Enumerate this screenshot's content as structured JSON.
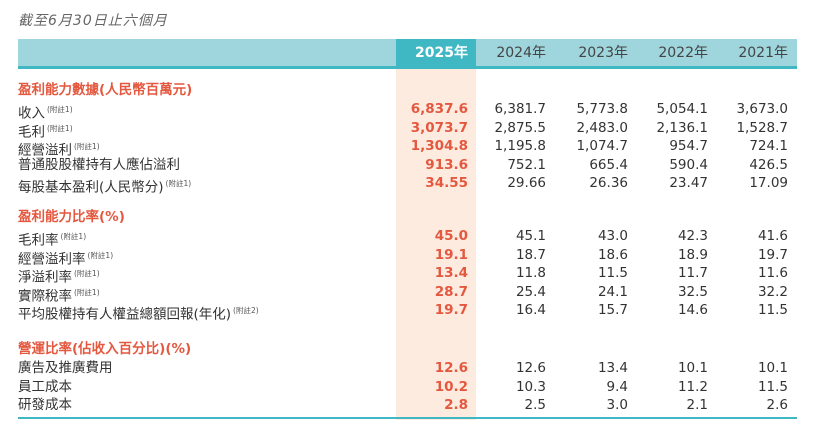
{
  "caption": "截至6月30日止六個月",
  "years": [
    "2025年",
    "2024年",
    "2023年",
    "2022年",
    "2021年"
  ],
  "sections": [
    {
      "title": "盈利能力數據(人民幣百萬元)",
      "rows": [
        {
          "label": "收入",
          "note": "(附註1)",
          "values": [
            "6,837.6",
            "6,381.7",
            "5,773.8",
            "5,054.1",
            "3,673.0"
          ]
        },
        {
          "label": "毛利",
          "note": "(附註1)",
          "values": [
            "3,073.7",
            "2,875.5",
            "2,483.0",
            "2,136.1",
            "1,528.7"
          ]
        },
        {
          "label": "經營溢利",
          "note": "(附註1)",
          "values": [
            "1,304.8",
            "1,195.8",
            "1,074.7",
            "954.7",
            "724.1"
          ]
        },
        {
          "label": "普通股股權持有人應佔溢利",
          "note": "",
          "values": [
            "913.6",
            "752.1",
            "665.4",
            "590.4",
            "426.5"
          ]
        },
        {
          "label": "每股基本盈利(人民幣分)",
          "note": "(附註1)",
          "values": [
            "34.55",
            "29.66",
            "26.36",
            "23.47",
            "17.09"
          ]
        }
      ]
    },
    {
      "title": "盈利能力比率(%)",
      "rows": [
        {
          "label": "毛利率",
          "note": "(附註1)",
          "values": [
            "45.0",
            "45.1",
            "43.0",
            "42.3",
            "41.6"
          ]
        },
        {
          "label": "經營溢利率",
          "note": "(附註1)",
          "values": [
            "19.1",
            "18.7",
            "18.6",
            "18.9",
            "19.7"
          ]
        },
        {
          "label": "淨溢利率",
          "note": "(附註1)",
          "values": [
            "13.4",
            "11.8",
            "11.5",
            "11.7",
            "11.6"
          ]
        },
        {
          "label": "實際稅率",
          "note": "(附註1)",
          "values": [
            "28.7",
            "25.4",
            "24.1",
            "32.5",
            "32.2"
          ]
        },
        {
          "label": "平均股權持有人權益總額回報(年化)",
          "note": "(附註2)",
          "values": [
            "19.7",
            "16.4",
            "15.7",
            "14.6",
            "11.5"
          ]
        }
      ]
    },
    {
      "title": "營運比率(佔收入百分比)(%)",
      "rows": [
        {
          "label": "廣告及推廣費用",
          "note": "",
          "values": [
            "12.6",
            "12.6",
            "13.4",
            "10.1",
            "10.1"
          ]
        },
        {
          "label": "員工成本",
          "note": "",
          "values": [
            "10.2",
            "10.3",
            "9.4",
            "11.2",
            "11.5"
          ]
        },
        {
          "label": "研發成本",
          "note": "",
          "values": [
            "2.8",
            "2.5",
            "3.0",
            "2.1",
            "2.6"
          ]
        }
      ]
    }
  ],
  "colors": {
    "accent_teal": "#3fb8c4",
    "header_band": "#9fd5dd",
    "highlight_red": "#e4583f",
    "highlight_bg": "#fdebe0"
  }
}
